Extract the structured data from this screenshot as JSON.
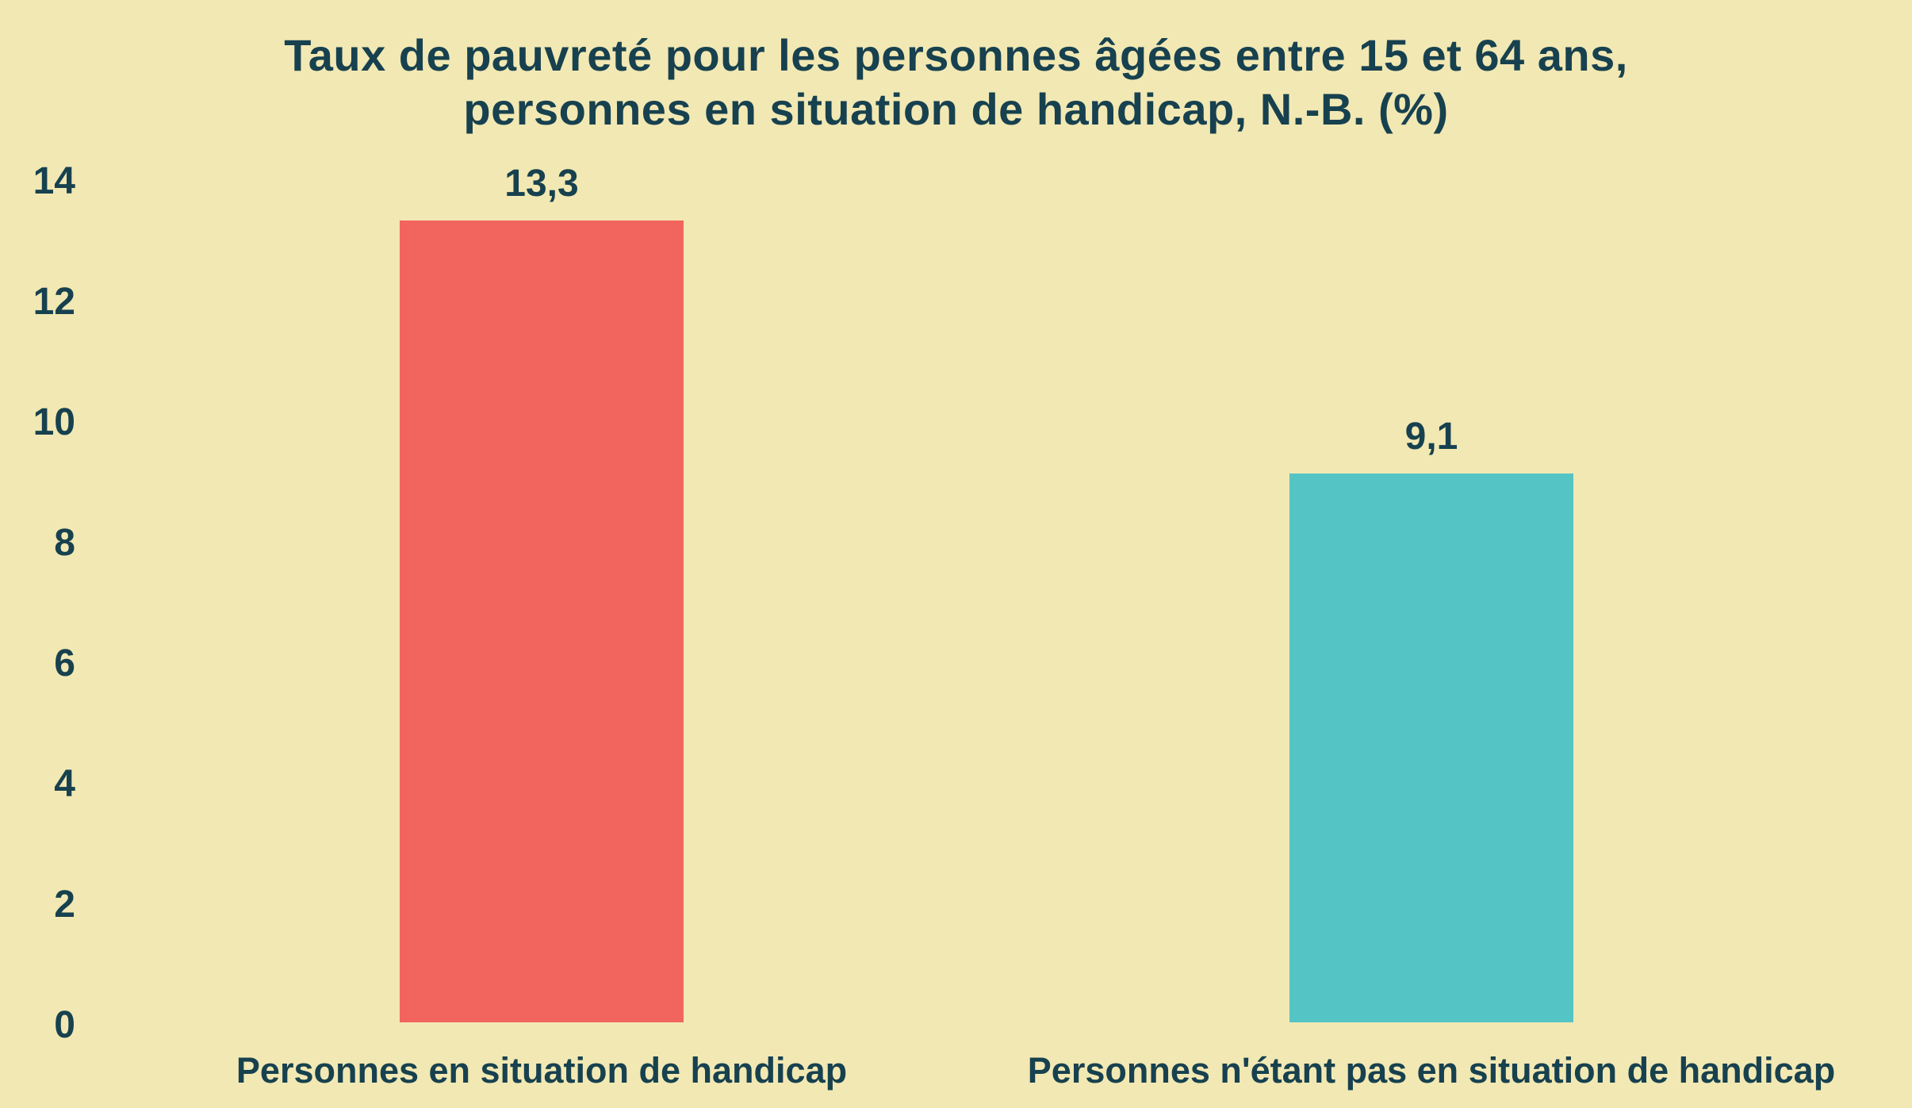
{
  "page": {
    "background_color": "#f2e8b3",
    "text_color": "#17414f"
  },
  "chart_data": {
    "type": "bar",
    "title": "Taux de pauvreté pour les personnes âgées entre 15 et 64 ans, personnes en situation de handicap, N.-B. (%)",
    "title_lines": [
      "Taux de pauvreté pour les personnes âgées entre 15 et 64 ans,",
      "personnes en situation de handicap, N.-B. (%)"
    ],
    "categories": [
      "Personnes en situation de handicap",
      "Personnes n'étant pas en situation de handicap"
    ],
    "values": [
      13.3,
      9.1
    ],
    "value_labels": [
      "13,3",
      "9,1"
    ],
    "bar_colors": [
      "#f2655e",
      "#54c4c4"
    ],
    "xlabel": "",
    "ylabel": "",
    "ylim": [
      0,
      14
    ],
    "yticks": [
      14,
      12,
      10,
      8,
      6,
      4,
      2,
      0
    ],
    "grid": false,
    "legend": "none"
  }
}
